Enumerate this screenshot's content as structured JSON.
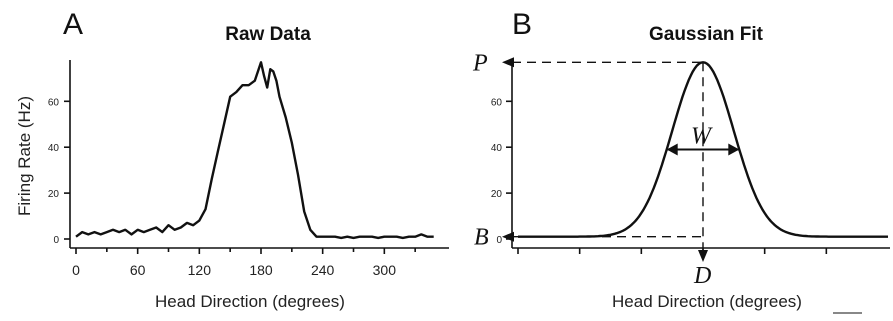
{
  "chart_data": [
    {
      "panel": "A",
      "type": "line",
      "title": "Raw Data",
      "xlabel": "Head Direction (degrees)",
      "ylabel": "Firing Rate (Hz)",
      "xlim": [
        0,
        360
      ],
      "ylim": [
        0,
        78
      ],
      "xticks": [
        0,
        60,
        120,
        180,
        240,
        300
      ],
      "yticks": [
        0,
        20,
        40,
        60
      ],
      "grid": false,
      "x": [
        0,
        6,
        12,
        18,
        24,
        30,
        36,
        42,
        48,
        54,
        60,
        66,
        72,
        78,
        84,
        90,
        96,
        102,
        108,
        114,
        120,
        126,
        132,
        138,
        144,
        150,
        156,
        162,
        168,
        174,
        180,
        183,
        186,
        189,
        192,
        195,
        198,
        204,
        210,
        216,
        222,
        228,
        234,
        240,
        246,
        252,
        258,
        264,
        270,
        276,
        282,
        288,
        294,
        300,
        306,
        312,
        318,
        324,
        330,
        336,
        342,
        348
      ],
      "values": [
        1,
        3,
        2,
        3,
        2,
        3,
        4,
        3,
        4,
        2,
        4,
        3,
        4,
        5,
        3,
        6,
        4,
        5,
        7,
        6,
        8,
        13,
        26,
        38,
        50,
        62,
        64,
        67,
        67,
        69,
        77,
        71,
        66,
        74,
        73,
        69,
        62,
        53,
        42,
        28,
        12,
        4,
        1,
        1,
        1,
        1,
        0.5,
        1,
        0.5,
        1,
        1,
        1,
        0.5,
        1,
        1,
        1,
        0.5,
        1,
        1,
        2,
        1,
        1
      ]
    },
    {
      "panel": "B",
      "type": "line",
      "title": "Gaussian Fit",
      "xlabel": "Head Direction (degrees)",
      "xlim": [
        0,
        360
      ],
      "ylim": [
        0,
        78
      ],
      "yticks": [
        0,
        20,
        40,
        60
      ],
      "grid": false,
      "fit": {
        "baseline": 1,
        "peak": 77,
        "center": 180,
        "sigma": 30
      },
      "annotations": {
        "peak": "P",
        "baseline": "B",
        "width": "W",
        "direction": "D"
      }
    }
  ]
}
